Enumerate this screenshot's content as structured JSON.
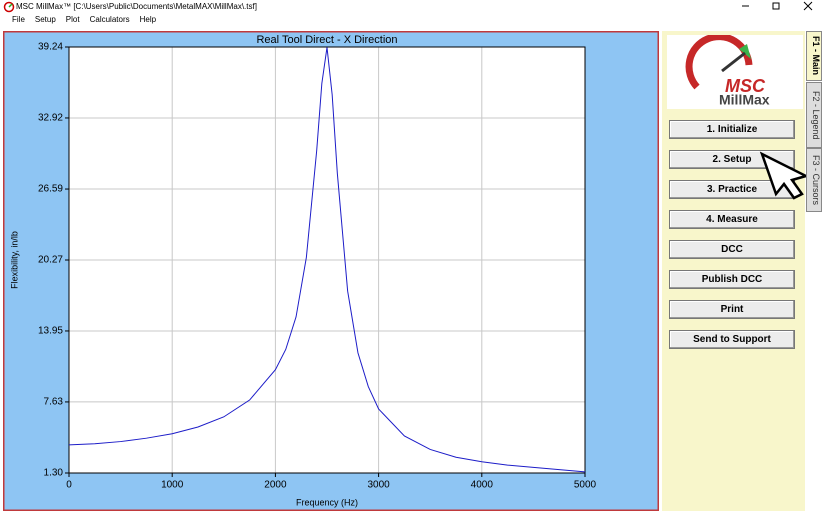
{
  "window": {
    "title": "MSC MillMax™ [C:\\Users\\Public\\Documents\\MetalMAX\\MillMax\\.tsf]"
  },
  "menu": [
    "File",
    "Setup",
    "Plot",
    "Calculators",
    "Help"
  ],
  "logo": {
    "brand": "MSC",
    "product": "MillMax"
  },
  "buttons": [
    "1. Initialize",
    "2. Setup",
    "3. Practice",
    "4. Measure",
    "DCC",
    "Publish DCC",
    "Print",
    "Send to Support"
  ],
  "tabs": [
    "F1 - Main",
    "F2 - Legend",
    "F3 - Cursors"
  ],
  "chart_data": {
    "type": "line",
    "title": "Real Tool Direct - X Direction",
    "x_label": "Frequency (Hz)",
    "y_label": "Flexibility, in/lb",
    "x": [
      0,
      250,
      500,
      750,
      1000,
      1250,
      1500,
      1750,
      2000,
      2100,
      2200,
      2300,
      2400,
      2450,
      2500,
      2550,
      2600,
      2700,
      2800,
      2900,
      3000,
      3250,
      3500,
      3750,
      4000,
      4250,
      4500,
      4750,
      5000
    ],
    "series": [
      {
        "color": "#1c1cc8",
        "values": [
          3.8,
          3.9,
          4.1,
          4.4,
          4.8,
          5.4,
          6.3,
          7.8,
          10.5,
          12.3,
          15.2,
          20.5,
          30,
          36,
          39.2,
          35,
          28,
          17.5,
          12,
          9,
          7.0,
          4.6,
          3.4,
          2.7,
          2.3,
          2.0,
          1.8,
          1.6,
          1.4
        ]
      }
    ],
    "xlim": [
      0,
      5000
    ],
    "xticks": [
      0,
      1000,
      2000,
      3000,
      4000,
      5000
    ],
    "ylim": [
      1.3,
      39.24
    ],
    "yticks": [
      {
        "value": 1.3,
        "label": "1.30"
      },
      7.63,
      13.95,
      20.27,
      26.59,
      32.92,
      39.24
    ],
    "grid": true
  }
}
